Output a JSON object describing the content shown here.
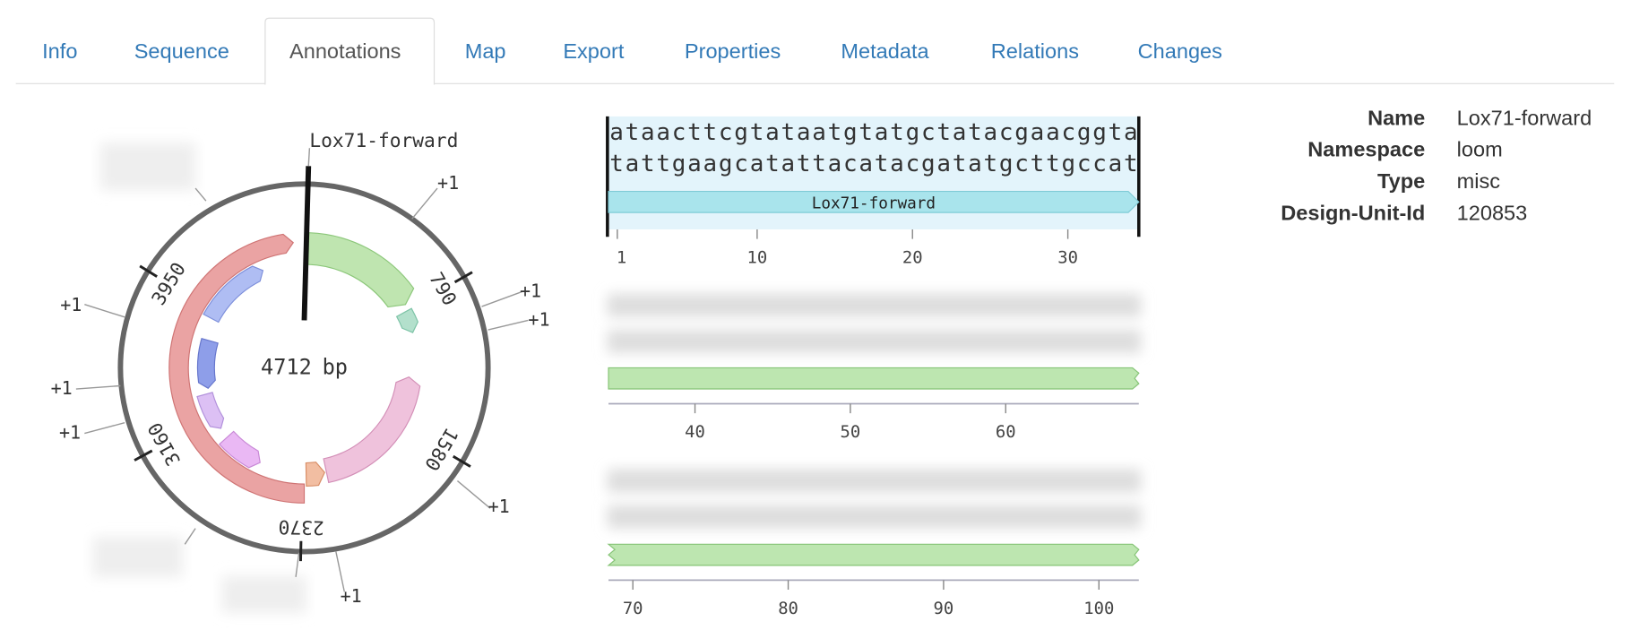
{
  "tabs": {
    "items": [
      "Info",
      "Sequence",
      "Annotations",
      "Map",
      "Export",
      "Properties",
      "Metadata",
      "Relations",
      "Changes"
    ],
    "active": 2
  },
  "plasmid": {
    "length": 4712,
    "unit": "bp",
    "feature_label": "Lox71-forward",
    "ticks": [
      790,
      1580,
      2370,
      3160,
      3950
    ],
    "overflow_labels": [
      "+1",
      "+1",
      "+1",
      "+1",
      "+1",
      "+1",
      "+1",
      "+1"
    ]
  },
  "sequence": {
    "top_strand": "ataacttcgtataatgtatgctatacgaacggta",
    "bottom_strand": "tattgaagcatattacatacgatatgcttgccat",
    "feature_label": "Lox71-forward",
    "rulers": [
      [
        1,
        10,
        20,
        30
      ],
      [
        40,
        50,
        60
      ],
      [
        70,
        80,
        90,
        100
      ]
    ]
  },
  "properties": {
    "rows": [
      [
        "Name",
        "Lox71-forward"
      ],
      [
        "Namespace",
        "loom"
      ],
      [
        "Type",
        "misc"
      ],
      [
        "Design-Unit-Id",
        "120853"
      ]
    ]
  }
}
